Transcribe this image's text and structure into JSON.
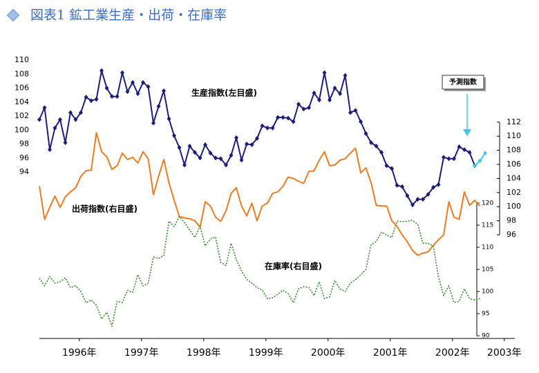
{
  "chart_data": {
    "type": "line",
    "title": "図表1 鉱工業生産・出荷・在庫率",
    "x": [
      0,
      1,
      2,
      3,
      4,
      5,
      6,
      7,
      8,
      9,
      10,
      11,
      12,
      13,
      14,
      15,
      16,
      17,
      18,
      19,
      20,
      21,
      22,
      23,
      24,
      25,
      26,
      27,
      28,
      29,
      30,
      31,
      32,
      33,
      34,
      35,
      36,
      37,
      38,
      39,
      40,
      41,
      42,
      43,
      44,
      45,
      46,
      47,
      48,
      49,
      50,
      51,
      52,
      53,
      54,
      55,
      56,
      57,
      58,
      59,
      60,
      61,
      62,
      63,
      64,
      65,
      66,
      67,
      68,
      69,
      70,
      71,
      72,
      73,
      74,
      75,
      76,
      77,
      78,
      79,
      80,
      81,
      82,
      83,
      84,
      85,
      86
    ],
    "xlim": [
      -1.2,
      92
    ],
    "xticks": [
      {
        "value": 7.7,
        "label": "1996年"
      },
      {
        "value": 19.7,
        "label": "1997年"
      },
      {
        "value": 31.7,
        "label": "1998年"
      },
      {
        "value": 43.7,
        "label": "1999年"
      },
      {
        "value": 55.7,
        "label": "2000年"
      },
      {
        "value": 67.7,
        "label": "2001年"
      },
      {
        "value": 79.7,
        "label": "2002年"
      },
      {
        "value": 89.7,
        "label": "2003年"
      }
    ],
    "ylim": [
      70.2,
      110
    ],
    "yticks": [
      94,
      96,
      98,
      100,
      102,
      104,
      106,
      108,
      110
    ],
    "y2lim": [
      81.3,
      120.8
    ],
    "y2ticks": [
      96,
      98,
      100,
      102,
      104,
      106,
      108,
      110,
      112
    ],
    "y3lim": [
      89.4,
      152.3
    ],
    "y3ticks": [
      90,
      95,
      100,
      105,
      110,
      115,
      120
    ],
    "series": [
      {
        "name": "生産指数(左目盛)",
        "color": "#1c1c7c",
        "marker": "diamond",
        "values": [
          101.5,
          103.2,
          97.2,
          100.3,
          101.5,
          98.2,
          102.5,
          101.5,
          102.5,
          104.7,
          104.2,
          104.4,
          108.5,
          106.0,
          104.8,
          104.8,
          108.2,
          105.5,
          106.8,
          105.2,
          106.8,
          106.2,
          101.0,
          103.4,
          105.6,
          101.6,
          99.2,
          97.5,
          95.0,
          97.7,
          96.8,
          96.0,
          97.9,
          96.7,
          96.0,
          95.9,
          95.0,
          96.4,
          98.9,
          95.7,
          98.0,
          97.9,
          98.8,
          100.6,
          100.3,
          100.3,
          101.8,
          101.8,
          101.7,
          101.2,
          103.7,
          103.0,
          103.2,
          105.3,
          104.3,
          108.2,
          104.3,
          106.0,
          105.2,
          107.8,
          102.5,
          102.8,
          101.2,
          99.5,
          98.2,
          97.7,
          96.8,
          94.9,
          94.5,
          92.1,
          91.9,
          90.6,
          89.3,
          90.1,
          90.1,
          90.8,
          91.8,
          92.2,
          96.1,
          95.9,
          95.9,
          97.6,
          97.2,
          96.8,
          94.9,
          null,
          null
        ]
      },
      {
        "name": "出荷指数(右目盛)",
        "color": "#ee7a22",
        "axis": "y2",
        "values": [
          102.9,
          98.2,
          99.9,
          101.5,
          99.9,
          101.4,
          102.1,
          102.7,
          104.3,
          105.1,
          105.2,
          110.5,
          107.8,
          107.1,
          105.3,
          105.8,
          107.6,
          106.7,
          107.0,
          106.2,
          107.8,
          106.8,
          101.7,
          104.3,
          106.7,
          103.4,
          100.9,
          98.6,
          98.4,
          98.3,
          98.0,
          97.1,
          100.7,
          100.1,
          98.5,
          97.9,
          99.4,
          101.9,
          102.7,
          100.1,
          98.7,
          100.5,
          98.0,
          100.1,
          100.5,
          101.9,
          102.1,
          102.9,
          104.2,
          104.0,
          103.6,
          103.3,
          105.0,
          105.1,
          106.6,
          107.8,
          105.8,
          105.9,
          106.6,
          106.8,
          107.6,
          108.3,
          104.8,
          105.5,
          103.4,
          100.2,
          100.1,
          100.1,
          98.0,
          97.2,
          96.0,
          95.0,
          93.8,
          93.1,
          93.4,
          93.6,
          94.5,
          95.3,
          96.0,
          100.7,
          98.5,
          98.2,
          102.1,
          100.2,
          100.9,
          100.1,
          null
        ]
      },
      {
        "name": "在庫率(右目盛)",
        "color": "#2e8b22",
        "axis": "y3",
        "dash": "dotted",
        "values": [
          103.0,
          101.3,
          103.4,
          101.9,
          102.2,
          103.1,
          100.9,
          101.3,
          100.0,
          97.5,
          98.1,
          96.9,
          93.8,
          95.3,
          92.2,
          97.8,
          97.5,
          100.3,
          99.8,
          103.8,
          101.3,
          101.9,
          107.8,
          107.5,
          108.1,
          115.9,
          114.7,
          116.9,
          115.6,
          113.9,
          112.2,
          114.8,
          110.3,
          111.9,
          112.3,
          106.6,
          105.9,
          110.9,
          107.2,
          104.7,
          102.8,
          101.9,
          100.9,
          100.3,
          98.4,
          98.6,
          99.4,
          100.3,
          99.5,
          97.5,
          100.6,
          101.1,
          100.9,
          99.1,
          102.2,
          98.4,
          98.8,
          102.5,
          100.6,
          100.0,
          101.9,
          102.7,
          103.8,
          105.0,
          110.6,
          111.3,
          113.4,
          112.8,
          112.2,
          115.9,
          115.8,
          115.9,
          116.1,
          115.2,
          110.9,
          110.9,
          110.3,
          103.4,
          99.1,
          101.3,
          97.5,
          97.8,
          100.6,
          98.4,
          98.1,
          98.4,
          null
        ]
      },
      {
        "name": "予測指数",
        "color": "#3cc8f0",
        "marker": "dot",
        "values": [
          null,
          null,
          null,
          null,
          null,
          null,
          null,
          null,
          null,
          null,
          null,
          null,
          null,
          null,
          null,
          null,
          null,
          null,
          null,
          null,
          null,
          null,
          null,
          null,
          null,
          null,
          null,
          null,
          null,
          null,
          null,
          null,
          null,
          null,
          null,
          null,
          null,
          null,
          null,
          null,
          null,
          null,
          null,
          null,
          null,
          null,
          null,
          null,
          null,
          null,
          null,
          null,
          null,
          null,
          null,
          null,
          null,
          null,
          null,
          null,
          null,
          null,
          null,
          null,
          null,
          null,
          null,
          null,
          null,
          null,
          null,
          null,
          null,
          null,
          null,
          null,
          null,
          null,
          null,
          null,
          null,
          null,
          null,
          null,
          94.9,
          95.6,
          96.7
        ]
      }
    ]
  }
}
